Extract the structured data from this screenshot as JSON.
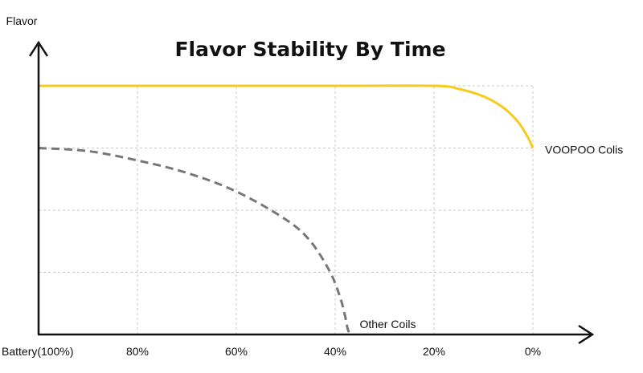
{
  "chart_data": {
    "type": "line",
    "title": "Flavor Stability By Time",
    "ylabel": "Flavor",
    "x_ticks": [
      {
        "value": 100,
        "label": "Battery(100%)"
      },
      {
        "value": 80,
        "label": "80%"
      },
      {
        "value": 60,
        "label": "60%"
      },
      {
        "value": 40,
        "label": "40%"
      },
      {
        "value": 20,
        "label": "20%"
      },
      {
        "value": 0,
        "label": "0%"
      }
    ],
    "xlim": [
      100,
      0
    ],
    "ylim": [
      0,
      4
    ],
    "grid": true,
    "series": [
      {
        "name": "VOOPOO Colis",
        "color": "#f5cc1e",
        "dash": "solid",
        "x": [
          100,
          80,
          60,
          40,
          20,
          15,
          10,
          6,
          3,
          1,
          0
        ],
        "y": [
          4.0,
          4.0,
          4.0,
          4.0,
          4.0,
          3.95,
          3.83,
          3.65,
          3.42,
          3.17,
          3.0
        ]
      },
      {
        "name": "Other Coils",
        "color": "#777777",
        "dash": "dashed",
        "x": [
          100,
          90,
          80,
          70,
          60,
          50,
          45,
          41,
          39,
          38,
          37.5,
          37
        ],
        "y": [
          3.0,
          2.95,
          2.8,
          2.6,
          2.3,
          1.85,
          1.5,
          1.0,
          0.6,
          0.3,
          0.1,
          0.0
        ]
      }
    ]
  }
}
